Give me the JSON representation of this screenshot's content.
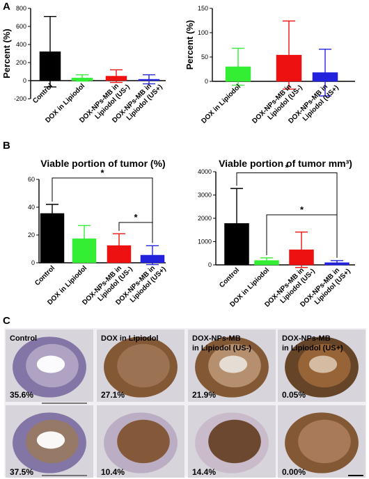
{
  "panels": {
    "a": "A",
    "b": "B",
    "c": "C"
  },
  "chart_data": [
    {
      "id": "a1",
      "type": "bar",
      "title": "",
      "ylabel": "Percent (%)",
      "ylim": [
        -200,
        800
      ],
      "yticks": [
        -200,
        0,
        200,
        400,
        600,
        800
      ],
      "categories": [
        "Control",
        "DOX in Lipiodol",
        "DOX-NPs-MB in Lipiodol (US-)",
        "DOX-NPs-MB in Lipiodol (US+)"
      ],
      "series": [
        {
          "values": [
            320,
            30,
            50,
            15
          ],
          "errors": [
            390,
            35,
            70,
            50
          ]
        }
      ],
      "colors": [
        "#000000",
        "#33ee33",
        "#ee1111",
        "#2222dd"
      ],
      "grid": false
    },
    {
      "id": "a2",
      "type": "bar",
      "title": "",
      "ylabel": "Percent (%)",
      "ylim": [
        0,
        150
      ],
      "yticks": [
        0,
        50,
        100,
        150
      ],
      "categories": [
        "DOX in Lipiodol",
        "DOX-NPs-MB in Lipiodol (US-)",
        "DOX-NPs-MB in Lipiodol (US+)"
      ],
      "series": [
        {
          "values": [
            30,
            54,
            18
          ],
          "errors": [
            38,
            70,
            48
          ]
        }
      ],
      "colors": [
        "#33ee33",
        "#ee1111",
        "#2222dd"
      ],
      "grid": false
    },
    {
      "id": "b1",
      "type": "bar",
      "title": "Viable portion of tumor (%)",
      "ylabel": "",
      "ylim": [
        0,
        60
      ],
      "yticks": [
        0,
        20,
        40,
        60
      ],
      "categories": [
        "Control",
        "DOX in Lipiodol",
        "DOX-NPs-MB in Lipiodol (US-)",
        "DOX-NPs-MB in Lipiodol (US+)"
      ],
      "series": [
        {
          "values": [
            35.5,
            17.3,
            12.4,
            5.5
          ],
          "errors": [
            6.5,
            9.5,
            8.5,
            6.8
          ]
        }
      ],
      "colors": [
        "#000000",
        "#33ee33",
        "#ee1111",
        "#2222dd"
      ],
      "significance": [
        {
          "from": 0,
          "to": 3,
          "label": "*",
          "level": 61
        },
        {
          "from": 2,
          "to": 3,
          "label": "*",
          "level": 29
        }
      ],
      "grid": false
    },
    {
      "id": "b2",
      "type": "bar",
      "title": "Viable portion of tumor mm³)",
      "ylabel": "",
      "ylim": [
        0,
        4000
      ],
      "yticks": [
        0,
        1000,
        2000,
        3000,
        4000
      ],
      "categories": [
        "Control",
        "DOX in Lipiodol",
        "DOX-NPs-MB in Lipiodol (US-)",
        "DOX-NPs-MB in Lipiodol (US+)"
      ],
      "series": [
        {
          "values": [
            1780,
            190,
            650,
            95
          ],
          "errors": [
            1500,
            110,
            760,
            90
          ]
        }
      ],
      "colors": [
        "#000000",
        "#33ee33",
        "#ee1111",
        "#2222dd"
      ],
      "significance": [
        {
          "from": 0,
          "to": 3,
          "label": "*",
          "level": 3950
        },
        {
          "from": 1,
          "to": 3,
          "label": "*",
          "level": 2150
        }
      ],
      "grid": false
    }
  ],
  "tissue": {
    "columns": [
      "Control",
      "DOX in Lipiodol",
      "DOX-NPs-MB in Lipiodol (US-)",
      "DOX-NPs-MB in Lipiodol (US+)"
    ],
    "values_top": [
      "35.6%",
      "27.1%",
      "21.9%",
      "0.05%"
    ],
    "values_bottom": [
      "37.5%",
      "10.4%",
      "14.4%",
      "0.00%"
    ],
    "colors": {
      "background": "#d8d4dc",
      "purple": "#7a6a9e",
      "brown": "#7a4a22",
      "dark_brown": "#5a3414"
    }
  }
}
